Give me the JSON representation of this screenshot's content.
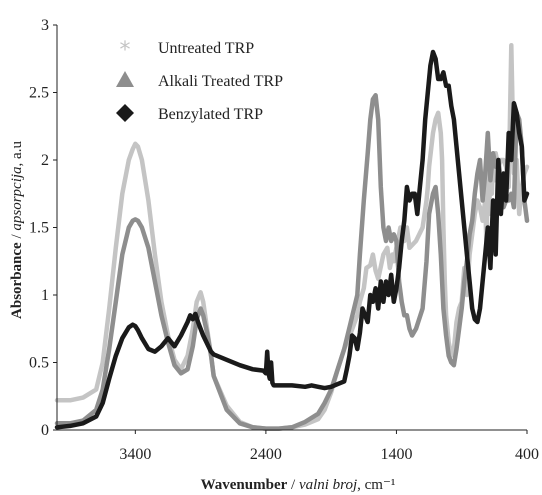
{
  "chart_data": {
    "type": "line",
    "title": "",
    "x_axis": {
      "label_bold": "Wavenumber",
      "label_sep": " / ",
      "label_italic": "valni broj",
      "label_unit": ", cm⁻¹",
      "range": [
        4000,
        400
      ],
      "reversed": true,
      "ticks": [
        3400,
        2400,
        1400,
        400
      ],
      "tick_labels": [
        "3400",
        "2400",
        "1400",
        "400"
      ]
    },
    "y_axis": {
      "label_bold": "Absorbance",
      "label_sep": " / ",
      "label_italic": "apsorpcija",
      "label_unit": ", a.u",
      "range": [
        0,
        3
      ],
      "ticks": [
        0,
        0.5,
        1,
        1.5,
        2,
        2.5,
        3
      ],
      "tick_labels": [
        "0",
        "0.5",
        "1",
        "1.5",
        "2",
        "2.5",
        "3"
      ]
    },
    "grid": false,
    "legend_position": "top-left",
    "series": [
      {
        "name": "Untreated TRP",
        "color": "#c4c4c4",
        "marker": "asterisk",
        "x": [
          4000,
          3900,
          3800,
          3700,
          3650,
          3600,
          3550,
          3500,
          3450,
          3420,
          3400,
          3380,
          3350,
          3300,
          3250,
          3200,
          3150,
          3100,
          3050,
          3000,
          2960,
          2930,
          2900,
          2880,
          2850,
          2820,
          2800,
          2700,
          2600,
          2500,
          2400,
          2300,
          2200,
          2100,
          2000,
          1950,
          1900,
          1850,
          1800,
          1750,
          1700,
          1680,
          1650,
          1630,
          1600,
          1580,
          1560,
          1540,
          1500,
          1470,
          1450,
          1430,
          1420,
          1400,
          1380,
          1370,
          1340,
          1320,
          1300,
          1250,
          1200,
          1170,
          1160,
          1150,
          1120,
          1100,
          1080,
          1060,
          1050,
          1040,
          1030,
          1020,
          1000,
          980,
          960,
          940,
          920,
          900,
          880,
          860,
          840,
          820,
          800,
          780,
          760,
          740,
          720,
          710,
          700,
          690,
          680,
          670,
          660,
          650,
          640,
          620,
          600,
          580,
          560,
          540,
          520,
          500,
          480,
          460,
          440,
          420,
          400
        ],
        "y": [
          0.22,
          0.22,
          0.24,
          0.3,
          0.5,
          0.9,
          1.35,
          1.75,
          2.0,
          2.08,
          2.12,
          2.1,
          2.0,
          1.7,
          1.3,
          0.95,
          0.7,
          0.52,
          0.45,
          0.55,
          0.75,
          0.95,
          1.02,
          0.95,
          0.75,
          0.55,
          0.4,
          0.18,
          0.06,
          0.02,
          0.01,
          0.01,
          0.02,
          0.04,
          0.08,
          0.15,
          0.28,
          0.45,
          0.6,
          0.72,
          0.85,
          0.95,
          1.05,
          1.2,
          1.22,
          1.3,
          1.18,
          1.12,
          1.3,
          1.35,
          1.2,
          1.3,
          1.25,
          1.35,
          1.45,
          1.5,
          1.4,
          1.5,
          1.35,
          1.4,
          1.5,
          1.7,
          1.8,
          1.95,
          2.2,
          2.3,
          2.35,
          2.2,
          2.0,
          1.5,
          1.1,
          0.85,
          0.65,
          0.55,
          0.6,
          0.8,
          0.9,
          0.95,
          1.2,
          1.0,
          1.3,
          1.45,
          1.6,
          1.7,
          1.65,
          1.55,
          1.7,
          1.35,
          1.9,
          1.6,
          1.95,
          1.75,
          2.0,
          1.85,
          2.05,
          1.95,
          2.0,
          2.0,
          1.95,
          1.8,
          2.85,
          1.9,
          2.0,
          1.6,
          1.8,
          1.9,
          1.95
        ]
      },
      {
        "name": "Alkali Treated TRP",
        "color": "#8e8e8e",
        "marker": "triangle",
        "x": [
          4000,
          3900,
          3800,
          3700,
          3650,
          3600,
          3550,
          3500,
          3450,
          3420,
          3400,
          3380,
          3350,
          3300,
          3250,
          3200,
          3150,
          3100,
          3050,
          3000,
          2960,
          2930,
          2900,
          2880,
          2850,
          2820,
          2800,
          2700,
          2600,
          2500,
          2400,
          2300,
          2200,
          2100,
          2000,
          1950,
          1900,
          1850,
          1800,
          1750,
          1700,
          1680,
          1650,
          1620,
          1600,
          1580,
          1560,
          1540,
          1520,
          1500,
          1480,
          1460,
          1440,
          1420,
          1400,
          1380,
          1360,
          1340,
          1320,
          1300,
          1280,
          1250,
          1200,
          1170,
          1150,
          1120,
          1100,
          1080,
          1060,
          1040,
          1020,
          1000,
          980,
          960,
          940,
          920,
          900,
          880,
          860,
          840,
          820,
          800,
          780,
          760,
          740,
          720,
          700,
          680,
          660,
          640,
          620,
          600,
          580,
          560,
          540,
          520,
          500,
          480,
          460,
          440,
          420,
          400
        ],
        "y": [
          0.05,
          0.05,
          0.07,
          0.15,
          0.3,
          0.6,
          0.95,
          1.3,
          1.5,
          1.55,
          1.56,
          1.55,
          1.5,
          1.35,
          1.1,
          0.85,
          0.65,
          0.48,
          0.42,
          0.45,
          0.62,
          0.82,
          0.9,
          0.85,
          0.72,
          0.55,
          0.4,
          0.15,
          0.05,
          0.02,
          0.01,
          0.01,
          0.02,
          0.06,
          0.12,
          0.2,
          0.3,
          0.45,
          0.6,
          0.8,
          1.0,
          1.3,
          1.7,
          2.05,
          2.3,
          2.45,
          2.48,
          2.3,
          1.8,
          1.5,
          1.4,
          1.5,
          1.4,
          1.45,
          1.4,
          1.1,
          0.95,
          0.85,
          0.85,
          0.75,
          0.7,
          0.75,
          0.9,
          1.25,
          1.6,
          1.75,
          1.8,
          1.6,
          1.3,
          0.9,
          0.7,
          0.55,
          0.5,
          0.48,
          0.6,
          0.75,
          0.9,
          1.1,
          1.25,
          1.45,
          1.55,
          1.75,
          1.9,
          2.0,
          1.7,
          1.9,
          2.2,
          1.85,
          2.05,
          1.95,
          2.0,
          1.85,
          1.65,
          1.7,
          1.7,
          1.75,
          1.65,
          2.35,
          2.3,
          2.1,
          1.7,
          1.55
        ]
      },
      {
        "name": "Benzylated TRP",
        "color": "#1a1a1a",
        "marker": "diamond",
        "x": [
          4000,
          3900,
          3800,
          3700,
          3650,
          3600,
          3550,
          3500,
          3450,
          3420,
          3400,
          3380,
          3350,
          3300,
          3250,
          3200,
          3150,
          3100,
          3050,
          3000,
          2980,
          2960,
          2940,
          2920,
          2900,
          2880,
          2860,
          2840,
          2820,
          2800,
          2700,
          2600,
          2500,
          2420,
          2400,
          2390,
          2380,
          2370,
          2360,
          2350,
          2340,
          2320,
          2300,
          2200,
          2100,
          2050,
          2000,
          1950,
          1900,
          1850,
          1800,
          1780,
          1760,
          1740,
          1720,
          1700,
          1680,
          1660,
          1640,
          1620,
          1600,
          1580,
          1560,
          1540,
          1520,
          1500,
          1480,
          1460,
          1440,
          1420,
          1400,
          1380,
          1360,
          1340,
          1320,
          1300,
          1280,
          1260,
          1240,
          1220,
          1200,
          1180,
          1160,
          1140,
          1120,
          1100,
          1080,
          1060,
          1040,
          1020,
          1000,
          980,
          960,
          940,
          920,
          900,
          880,
          860,
          840,
          820,
          800,
          780,
          760,
          740,
          720,
          700,
          680,
          660,
          640,
          620,
          600,
          580,
          560,
          540,
          520,
          500,
          480,
          460,
          440,
          420,
          400
        ],
        "y": [
          0.02,
          0.03,
          0.05,
          0.1,
          0.2,
          0.38,
          0.55,
          0.68,
          0.76,
          0.78,
          0.77,
          0.74,
          0.68,
          0.6,
          0.58,
          0.62,
          0.68,
          0.62,
          0.7,
          0.8,
          0.85,
          0.82,
          0.86,
          0.8,
          0.75,
          0.7,
          0.66,
          0.62,
          0.58,
          0.56,
          0.52,
          0.48,
          0.45,
          0.44,
          0.42,
          0.58,
          0.42,
          0.38,
          0.5,
          0.35,
          0.33,
          0.33,
          0.33,
          0.33,
          0.32,
          0.33,
          0.32,
          0.31,
          0.32,
          0.34,
          0.36,
          0.45,
          0.55,
          0.7,
          0.68,
          0.6,
          0.72,
          0.9,
          0.85,
          0.8,
          1.0,
          0.95,
          1.05,
          0.9,
          1.1,
          0.95,
          1.1,
          1.0,
          1.15,
          0.95,
          1.05,
          1.2,
          1.4,
          1.55,
          1.8,
          1.7,
          1.75,
          1.75,
          1.6,
          1.8,
          2.0,
          2.3,
          2.5,
          2.7,
          2.8,
          2.75,
          2.6,
          2.6,
          2.65,
          2.55,
          2.55,
          2.4,
          2.3,
          2.1,
          1.9,
          1.7,
          1.5,
          1.3,
          1.1,
          0.9,
          0.82,
          0.8,
          0.9,
          1.1,
          1.3,
          1.5,
          1.2,
          1.7,
          1.3,
          2.0,
          1.6,
          1.9,
          1.7,
          2.2,
          2.0,
          2.42,
          2.35,
          2.2,
          2.1,
          1.7,
          1.75
        ]
      }
    ]
  }
}
